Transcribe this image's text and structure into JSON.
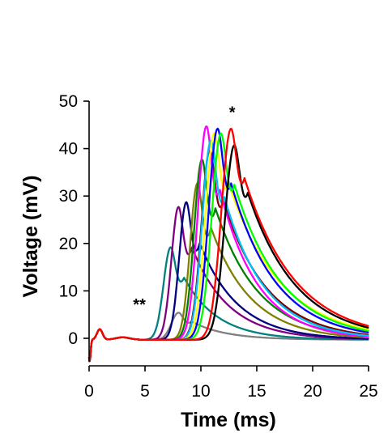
{
  "chart_data": {
    "type": "line",
    "title": "",
    "xlabel": "Time (ms)",
    "ylabel": "Voltage (mV)",
    "xlim": [
      0,
      25
    ],
    "ylim": [
      -5,
      50
    ],
    "x_ticks": [
      "0",
      "5",
      "10",
      "15",
      "20",
      "25"
    ],
    "y_ticks": [
      "0",
      "10",
      "20",
      "30",
      "40",
      "50"
    ],
    "grid": false,
    "legend": "none",
    "annotations": [
      {
        "text": "*",
        "x": 12.8,
        "y": 46.5
      },
      {
        "text": "**",
        "x": 4.5,
        "y": 6.0
      }
    ],
    "series": [
      {
        "color": "#808080",
        "peak_x": 8.0,
        "peak_y": 5.7,
        "tau": 3.0
      },
      {
        "color": "#008080",
        "peak_x": 7.3,
        "peak_y": 19.5,
        "tau": 3.0
      },
      {
        "color": "#800080",
        "peak_x": 8.0,
        "peak_y": 28.0,
        "tau": 3.3
      },
      {
        "color": "#000080",
        "peak_x": 8.7,
        "peak_y": 29.0,
        "tau": 3.4
      },
      {
        "color": "#808000",
        "peak_x": 9.7,
        "peak_y": 33.0,
        "tau": 3.6
      },
      {
        "color": "#008000",
        "peak_x": 10.1,
        "peak_y": 38.0,
        "tau": 3.8
      },
      {
        "color": "#800000",
        "peak_x": 10.8,
        "peak_y": 40.0,
        "tau": 3.9
      },
      {
        "color": "#ff00ff",
        "peak_x": 10.5,
        "peak_y": 45.0,
        "tau": 3.4
      },
      {
        "color": "#00c0ff",
        "peak_x": 10.9,
        "peak_y": 42.0,
        "tau": 3.6
      },
      {
        "color": "#ffff00",
        "peak_x": 11.2,
        "peak_y": 43.5,
        "tau": 4.6
      },
      {
        "color": "#0000ff",
        "peak_x": 11.5,
        "peak_y": 44.5,
        "tau": 4.0
      },
      {
        "color": "#00ff00",
        "peak_x": 11.8,
        "peak_y": 43.5,
        "tau": 4.2
      },
      {
        "color": "#000000",
        "peak_x": 13.0,
        "peak_y": 41.0,
        "tau": 4.3
      },
      {
        "color": "#ff0000",
        "peak_x": 12.7,
        "peak_y": 44.5,
        "tau": 4.5
      }
    ]
  }
}
